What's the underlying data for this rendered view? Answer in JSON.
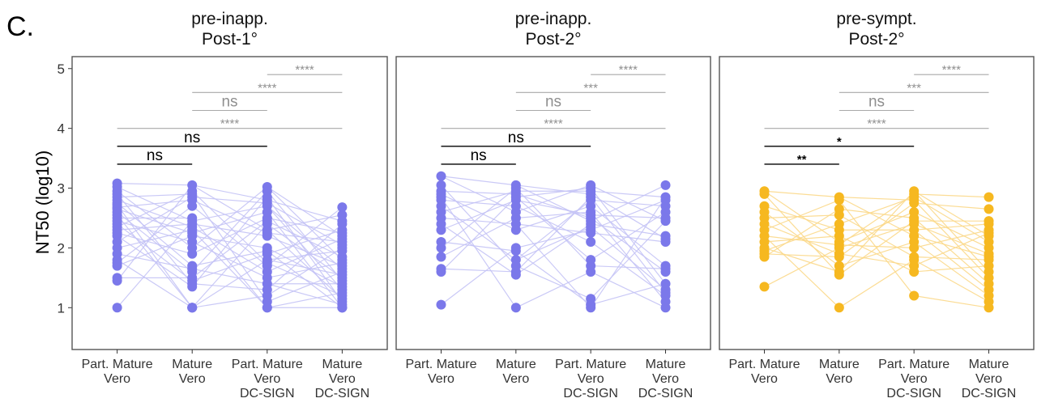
{
  "figure": {
    "panel_letter": "C."
  },
  "y_axis": {
    "label": "NT50 (log10)",
    "ticks": [
      1,
      2,
      3,
      4,
      5
    ],
    "ylim": [
      0.3,
      5.2
    ]
  },
  "categories": [
    [
      "Part. Mature",
      "Vero"
    ],
    [
      "Mature",
      "Vero"
    ],
    [
      "Part. Mature",
      "Vero",
      "DC-SIGN"
    ],
    [
      "Mature",
      "Vero",
      "DC-SIGN"
    ]
  ],
  "colors": {
    "blue_point": "#7b78ea",
    "blue_line": "#c5c4f6",
    "orange_point": "#f6b820",
    "orange_line": "#fbd98a",
    "sig_gray": "#a8a8a8",
    "sig_black": "#000000",
    "frame": "#555555"
  },
  "chart_data": [
    {
      "type": "scatter",
      "title": [
        "pre-inapp.",
        "Post-1°"
      ],
      "color": "blue",
      "values": [
        [
          3.08,
          3.02,
          2.95,
          2.9,
          2.85,
          2.8,
          2.75,
          2.72,
          2.68,
          2.65,
          2.6,
          2.55,
          2.5,
          2.45,
          2.4,
          2.35,
          2.3,
          2.25,
          2.2,
          2.1,
          2.0,
          1.9,
          1.8,
          1.75,
          1.7,
          1.5,
          1.45,
          1.0
        ],
        [
          3.05,
          2.95,
          2.9,
          2.85,
          2.8,
          2.7,
          2.5,
          2.45,
          2.4,
          2.35,
          2.3,
          2.25,
          2.2,
          2.1,
          2.0,
          1.9,
          1.7,
          1.65,
          1.6,
          1.5,
          1.45,
          1.4,
          1.35,
          1.0,
          1.0,
          1.0
        ],
        [
          3.02,
          2.95,
          2.85,
          2.8,
          2.75,
          2.7,
          2.6,
          2.5,
          2.45,
          2.4,
          2.3,
          2.25,
          2.2,
          2.0,
          1.95,
          1.9,
          1.8,
          1.75,
          1.7,
          1.6,
          1.5,
          1.4,
          1.3,
          1.2,
          1.1,
          1.0,
          1.0
        ],
        [
          2.68,
          2.55,
          2.45,
          2.4,
          2.3,
          2.25,
          2.2,
          2.15,
          2.1,
          2.05,
          2.0,
          1.95,
          1.85,
          1.8,
          1.75,
          1.7,
          1.65,
          1.6,
          1.55,
          1.5,
          1.45,
          1.4,
          1.35,
          1.3,
          1.25,
          1.2,
          1.15,
          1.1,
          1.05,
          1.0,
          1.0,
          1.0
        ]
      ],
      "significance": [
        {
          "from": 1,
          "to": 2,
          "y": 3.4,
          "label": "ns",
          "style": "black"
        },
        {
          "from": 1,
          "to": 3,
          "y": 3.7,
          "label": "ns",
          "style": "black"
        },
        {
          "from": 1,
          "to": 4,
          "y": 4.0,
          "label": "****",
          "style": "gray"
        },
        {
          "from": 2,
          "to": 3,
          "y": 4.3,
          "label": "ns",
          "style": "gray"
        },
        {
          "from": 2,
          "to": 4,
          "y": 4.6,
          "label": "****",
          "style": "gray"
        },
        {
          "from": 3,
          "to": 4,
          "y": 4.9,
          "label": "****",
          "style": "gray"
        }
      ]
    },
    {
      "type": "scatter",
      "title": [
        "pre-inapp.",
        "Post-2°"
      ],
      "color": "blue",
      "values": [
        [
          3.2,
          3.05,
          2.95,
          2.9,
          2.85,
          2.8,
          2.7,
          2.6,
          2.5,
          2.4,
          2.3,
          2.1,
          2.0,
          1.85,
          1.65,
          1.6,
          1.05
        ],
        [
          3.05,
          3.0,
          2.95,
          2.9,
          2.85,
          2.8,
          2.7,
          2.6,
          2.5,
          2.4,
          2.3,
          2.0,
          1.95,
          1.8,
          1.7,
          1.6,
          1.55,
          1.0
        ],
        [
          3.05,
          3.0,
          2.95,
          2.9,
          2.85,
          2.8,
          2.7,
          2.6,
          2.55,
          2.5,
          2.45,
          2.4,
          2.35,
          2.3,
          2.25,
          2.1,
          1.8,
          1.7,
          1.6,
          1.15,
          1.05,
          1.0
        ],
        [
          3.05,
          2.85,
          2.8,
          2.7,
          2.6,
          2.5,
          2.45,
          2.2,
          2.15,
          2.1,
          1.7,
          1.65,
          1.6,
          1.4,
          1.3,
          1.25,
          1.2,
          1.1,
          1.0
        ]
      ],
      "significance": [
        {
          "from": 1,
          "to": 2,
          "y": 3.4,
          "label": "ns",
          "style": "black"
        },
        {
          "from": 1,
          "to": 3,
          "y": 3.7,
          "label": "ns",
          "style": "black"
        },
        {
          "from": 1,
          "to": 4,
          "y": 4.0,
          "label": "****",
          "style": "gray"
        },
        {
          "from": 2,
          "to": 3,
          "y": 4.3,
          "label": "ns",
          "style": "gray"
        },
        {
          "from": 2,
          "to": 4,
          "y": 4.6,
          "label": "***",
          "style": "gray"
        },
        {
          "from": 3,
          "to": 4,
          "y": 4.9,
          "label": "****",
          "style": "gray"
        }
      ]
    },
    {
      "type": "scatter",
      "title": [
        "pre-sympt.",
        "Post-2°"
      ],
      "color": "orange",
      "values": [
        [
          2.95,
          2.9,
          2.7,
          2.6,
          2.5,
          2.4,
          2.3,
          2.2,
          2.1,
          2.0,
          1.95,
          1.9,
          1.85,
          1.35
        ],
        [
          2.85,
          2.8,
          2.65,
          2.55,
          2.4,
          2.3,
          2.2,
          2.1,
          2.05,
          2.0,
          1.9,
          1.85,
          1.7,
          1.6,
          1.55,
          1.0
        ],
        [
          2.95,
          2.9,
          2.85,
          2.8,
          2.75,
          2.6,
          2.5,
          2.45,
          2.4,
          2.3,
          2.2,
          2.1,
          2.0,
          1.85,
          1.8,
          1.7,
          1.6,
          1.2
        ],
        [
          2.85,
          2.65,
          2.45,
          2.4,
          2.3,
          2.25,
          2.2,
          2.1,
          2.0,
          1.9,
          1.85,
          1.8,
          1.7,
          1.6,
          1.5,
          1.4,
          1.3,
          1.2,
          1.1,
          1.0
        ]
      ],
      "significance": [
        {
          "from": 1,
          "to": 2,
          "y": 3.4,
          "label": "**",
          "style": "black"
        },
        {
          "from": 1,
          "to": 3,
          "y": 3.7,
          "label": "*",
          "style": "black"
        },
        {
          "from": 1,
          "to": 4,
          "y": 4.0,
          "label": "****",
          "style": "gray"
        },
        {
          "from": 2,
          "to": 3,
          "y": 4.3,
          "label": "ns",
          "style": "gray"
        },
        {
          "from": 2,
          "to": 4,
          "y": 4.6,
          "label": "***",
          "style": "gray"
        },
        {
          "from": 3,
          "to": 4,
          "y": 4.9,
          "label": "****",
          "style": "gray"
        }
      ]
    }
  ]
}
